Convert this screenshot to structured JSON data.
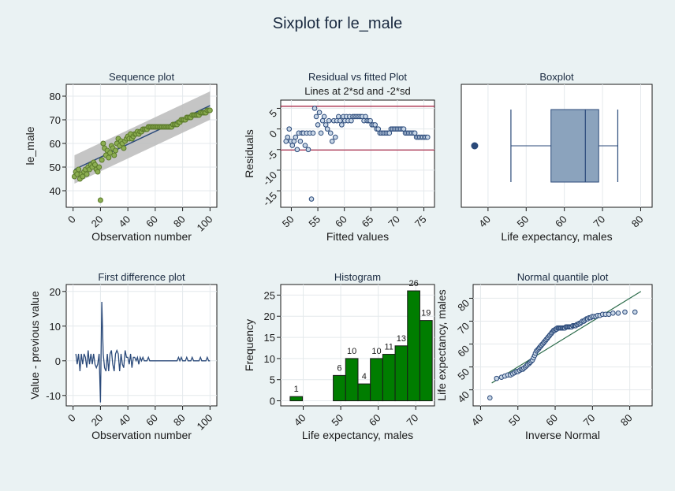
{
  "figure": {
    "title": "Sixplot for le_male"
  },
  "chart_data": [
    {
      "id": "sequence",
      "type": "scatter",
      "title": "Sequence plot",
      "subtitle": "",
      "xlabel": "Observation number",
      "ylabel": "le_male",
      "xlim": [
        -5,
        105
      ],
      "ylim": [
        33,
        85
      ],
      "xticks": [
        0,
        20,
        40,
        60,
        80,
        100
      ],
      "yticks": [
        40,
        50,
        60,
        70,
        80
      ],
      "trend": {
        "x": [
          1,
          100
        ],
        "y": [
          49.0,
          76.0
        ]
      },
      "band": {
        "x": [
          1,
          100
        ],
        "lower": [
          43.0,
          70.0
        ],
        "upper": [
          55.0,
          82.0
        ]
      },
      "x": [
        1,
        2,
        3,
        4,
        5,
        6,
        7,
        8,
        9,
        10,
        11,
        12,
        13,
        14,
        15,
        16,
        17,
        18,
        19,
        20,
        21,
        22,
        23,
        24,
        25,
        26,
        27,
        28,
        29,
        30,
        31,
        32,
        33,
        34,
        35,
        36,
        37,
        38,
        39,
        40,
        41,
        42,
        43,
        44,
        45,
        46,
        47,
        48,
        49,
        50,
        51,
        52,
        53,
        54,
        55,
        56,
        57,
        58,
        59,
        60,
        61,
        62,
        63,
        64,
        65,
        66,
        67,
        68,
        69,
        70,
        71,
        72,
        73,
        74,
        75,
        76,
        77,
        78,
        79,
        80,
        81,
        82,
        83,
        84,
        85,
        86,
        87,
        88,
        89,
        90,
        91,
        92,
        93,
        94,
        95,
        96,
        97,
        98,
        99,
        100
      ],
      "y": [
        46,
        48,
        47,
        49,
        45,
        47,
        46,
        48,
        49,
        47,
        50,
        49,
        51,
        50,
        52,
        51,
        49,
        48,
        50,
        36,
        53,
        60,
        58,
        55,
        57,
        54,
        56,
        59,
        58,
        55,
        57,
        60,
        62,
        59,
        61,
        60,
        58,
        61,
        62,
        63,
        62,
        64,
        62,
        63,
        64,
        64,
        65,
        64,
        65,
        65,
        66,
        66,
        66,
        66,
        67,
        67,
        67,
        67,
        67,
        67,
        67,
        67,
        67,
        67,
        67,
        67,
        67,
        67,
        67,
        67,
        67,
        67,
        68,
        68,
        68,
        68,
        69,
        69,
        70,
        70,
        70,
        70,
        71,
        71,
        71,
        71,
        72,
        72,
        72,
        72,
        72,
        72,
        73,
        73,
        73,
        73,
        73,
        74,
        74,
        74
      ],
      "style": {
        "marker": "#5b7a2b",
        "trend": "#2b4a7a",
        "band": "#bbbbbb"
      }
    },
    {
      "id": "rvf",
      "type": "scatter",
      "title": "Residual vs fitted Plot",
      "subtitle": "Lines at 2*sd and -2*sd",
      "xlabel": "Fitted values",
      "ylabel": "Residuals",
      "xlim": [
        48,
        77
      ],
      "ylim": [
        -19,
        7
      ],
      "xticks": [
        50,
        55,
        60,
        65,
        70,
        75
      ],
      "yticks": [
        -15,
        -10,
        -5,
        0,
        5
      ],
      "hlines": [
        5.5,
        -5.1
      ],
      "x": [
        49.0,
        49.3,
        49.6,
        49.9,
        50.2,
        50.5,
        50.8,
        51.1,
        51.4,
        51.7,
        52.0,
        52.3,
        52.6,
        52.9,
        53.2,
        53.5,
        53.8,
        54.1,
        54.4,
        54.7,
        55.0,
        55.3,
        55.6,
        55.9,
        56.2,
        56.5,
        56.8,
        57.1,
        57.4,
        57.7,
        58.0,
        58.3,
        58.6,
        58.9,
        59.2,
        59.5,
        59.8,
        60.1,
        60.4,
        60.7,
        61.0,
        61.3,
        61.6,
        61.9,
        62.2,
        62.5,
        62.8,
        63.1,
        63.4,
        63.7,
        64.0,
        64.3,
        64.6,
        64.9,
        65.2,
        65.5,
        65.8,
        66.1,
        66.4,
        66.7,
        67.0,
        67.3,
        67.6,
        67.9,
        68.2,
        68.5,
        68.8,
        69.1,
        69.4,
        69.7,
        70.0,
        70.3,
        70.6,
        70.9,
        71.2,
        71.5,
        71.8,
        72.1,
        72.4,
        72.7,
        73.0,
        73.3,
        73.6,
        73.9,
        74.2,
        74.5,
        74.8,
        75.1,
        75.4,
        75.7
      ],
      "y": [
        -3,
        -2,
        0,
        -3,
        -4,
        -3,
        -2,
        -5,
        -1,
        -3,
        -1,
        -1,
        -4,
        -1,
        -5,
        -1,
        -17,
        -1,
        5,
        3,
        1,
        4,
        -1,
        2,
        3,
        1,
        0,
        2,
        -1,
        -3,
        2,
        -2,
        2,
        3,
        2,
        1,
        3,
        2,
        3,
        2,
        3,
        2,
        3,
        3,
        3,
        3,
        3,
        3,
        3,
        2,
        3,
        2,
        2,
        2,
        1,
        1,
        1,
        0,
        0,
        -1,
        -1,
        -1,
        -1,
        -1,
        -1,
        -1,
        0,
        0,
        0,
        0,
        0,
        0,
        0,
        0,
        0,
        -1,
        -1,
        -1,
        -1,
        -1,
        -1,
        -1,
        -2,
        -2,
        -2,
        -2,
        -2,
        -2,
        -2,
        -2
      ],
      "style": {
        "marker": "#2b4a7a",
        "hline": "#a0183a"
      }
    },
    {
      "id": "boxplot",
      "type": "box",
      "title": "Boxplot",
      "xlabel": "Life expectancy, males",
      "xlim": [
        33,
        83
      ],
      "xticks": [
        40,
        50,
        60,
        70,
        80
      ],
      "whisker_low": 46,
      "q1": 56.5,
      "median": 65.5,
      "q3": 69,
      "whisker_high": 74,
      "outliers": [
        36.5
      ],
      "style": {
        "box": "#8ba3bd",
        "line": "#2b4a7a"
      }
    },
    {
      "id": "firstdiff",
      "type": "line",
      "title": "First difference plot",
      "xlabel": "Observation number",
      "ylabel": "Value - previous value",
      "xlim": [
        -5,
        105
      ],
      "ylim": [
        -13,
        22
      ],
      "xticks": [
        0,
        20,
        40,
        60,
        80,
        100
      ],
      "yticks": [
        -10,
        0,
        10,
        20
      ],
      "x": [
        2,
        3,
        4,
        5,
        6,
        7,
        8,
        9,
        10,
        11,
        12,
        13,
        14,
        15,
        16,
        17,
        18,
        19,
        20,
        21,
        22,
        23,
        24,
        25,
        26,
        27,
        28,
        29,
        30,
        31,
        32,
        33,
        34,
        35,
        36,
        37,
        38,
        39,
        40,
        41,
        42,
        43,
        44,
        45,
        46,
        47,
        48,
        49,
        50,
        51,
        52,
        53,
        54,
        55,
        56,
        57,
        58,
        59,
        60,
        61,
        62,
        63,
        64,
        65,
        66,
        67,
        68,
        69,
        70,
        71,
        72,
        73,
        74,
        75,
        76,
        77,
        78,
        79,
        80,
        81,
        82,
        83,
        84,
        85,
        86,
        87,
        88,
        89,
        90,
        91,
        92,
        93,
        94,
        95,
        96,
        97,
        98,
        99,
        100
      ],
      "y": [
        2,
        -1,
        2,
        -3,
        2,
        -1,
        2,
        1,
        -2,
        3,
        -1,
        2,
        -1,
        2,
        -1,
        -2,
        -1,
        2,
        -12,
        17,
        2,
        -2,
        -3,
        2,
        -3,
        2,
        3,
        -1,
        -3,
        2,
        3,
        2,
        -3,
        2,
        -1,
        -2,
        3,
        1,
        1,
        -1,
        2,
        -2,
        1,
        1,
        0,
        1,
        -1,
        1,
        0,
        1,
        0,
        0,
        0,
        1,
        0,
        0,
        0,
        0,
        0,
        0,
        0,
        0,
        0,
        0,
        0,
        0,
        0,
        0,
        0,
        0,
        0,
        0,
        0,
        0,
        0,
        1,
        0,
        1,
        0,
        0,
        0,
        1,
        0,
        0,
        0,
        1,
        0,
        0,
        0,
        0,
        0,
        1,
        0,
        0,
        0,
        0,
        1,
        0,
        0
      ],
      "style": {
        "line": "#2b4a7a"
      }
    },
    {
      "id": "histogram",
      "type": "bar",
      "title": "Histogram",
      "xlabel": "Life expectancy, males",
      "ylabel": "Frequency",
      "xlim": [
        34,
        75
      ],
      "ylim": [
        -1.2,
        27.5
      ],
      "xticks": [
        40,
        50,
        60,
        70
      ],
      "yticks": [
        0,
        5,
        10,
        15,
        20,
        25
      ],
      "bin_width": 3.3,
      "bin_starts": [
        36.5,
        44.7,
        48.0,
        51.3,
        54.6,
        57.9,
        61.2,
        64.5,
        67.8,
        71.1
      ],
      "values": [
        1,
        6,
        10,
        4,
        10,
        11,
        13,
        26,
        19
      ],
      "bar_bins": [
        0,
        2,
        3,
        4,
        5,
        6,
        7,
        8,
        9
      ],
      "style": {
        "bar": "#007d00",
        "edge": "#1a1a1a"
      }
    },
    {
      "id": "normalq",
      "type": "scatter",
      "title": "Normal quantile plot",
      "xlabel": "Inverse Normal",
      "ylabel": "Life expectancy, males",
      "xlim": [
        38,
        86
      ],
      "ylim": [
        33,
        86
      ],
      "xticks": [
        40,
        50,
        60,
        70,
        80
      ],
      "yticks": [
        40,
        50,
        60,
        70,
        80
      ],
      "refline": {
        "x": [
          43,
          83
        ],
        "y": [
          43,
          83
        ]
      },
      "x": [
        42.5,
        44.3,
        45.6,
        46.5,
        47.3,
        48,
        48.6,
        49.1,
        49.6,
        50,
        50.5,
        50.9,
        51.3,
        51.6,
        52,
        52.3,
        52.6,
        53,
        53.3,
        53.6,
        53.9,
        54.2,
        54.5,
        54.7,
        55,
        55.3,
        55.6,
        55.8,
        56.1,
        56.3,
        56.6,
        56.9,
        57.1,
        57.4,
        57.6,
        57.9,
        58.1,
        58.4,
        58.6,
        58.9,
        59.1,
        59.4,
        59.6,
        59.9,
        60.1,
        60.4,
        60.6,
        60.9,
        61.1,
        61.4,
        61.6,
        61.9,
        62.1,
        62.4,
        62.6,
        62.9,
        63.1,
        63.4,
        63.7,
        63.9,
        64.2,
        64.4,
        64.7,
        65,
        65.3,
        65.5,
        65.8,
        66.1,
        66.4,
        66.7,
        67,
        67.3,
        67.7,
        68,
        68.4,
        68.7,
        69.1,
        69.5,
        69.9,
        70.4,
        70.9,
        71.4,
        72,
        72.7,
        73.5,
        74.4,
        75.5,
        76.9,
        78.7,
        81.4
      ],
      "y": [
        36.5,
        45,
        45.5,
        46,
        46.5,
        46.5,
        47,
        47.5,
        48,
        48,
        48.5,
        49,
        49,
        49.5,
        50,
        50.5,
        51,
        51.5,
        52,
        52.5,
        53,
        54,
        55,
        56,
        57,
        57.5,
        58,
        58.5,
        59,
        59.5,
        60,
        60.5,
        61,
        61.5,
        62,
        62.5,
        63,
        63.5,
        64,
        64.5,
        65,
        65.5,
        66,
        66,
        66.5,
        66.5,
        67,
        67,
        67,
        67,
        67,
        67,
        67,
        67,
        67,
        67.5,
        67.5,
        67.5,
        67.5,
        67.5,
        67.5,
        67.5,
        68,
        68,
        68,
        68,
        68.5,
        68.5,
        69,
        69,
        69.5,
        70,
        70,
        70.5,
        71,
        71,
        71.5,
        71.5,
        72,
        72,
        72,
        72.5,
        72.5,
        73,
        73,
        73,
        73.5,
        73.5,
        74,
        74
      ],
      "style": {
        "marker": "#2b4a7a",
        "refline": "#2b6b4a"
      }
    }
  ]
}
